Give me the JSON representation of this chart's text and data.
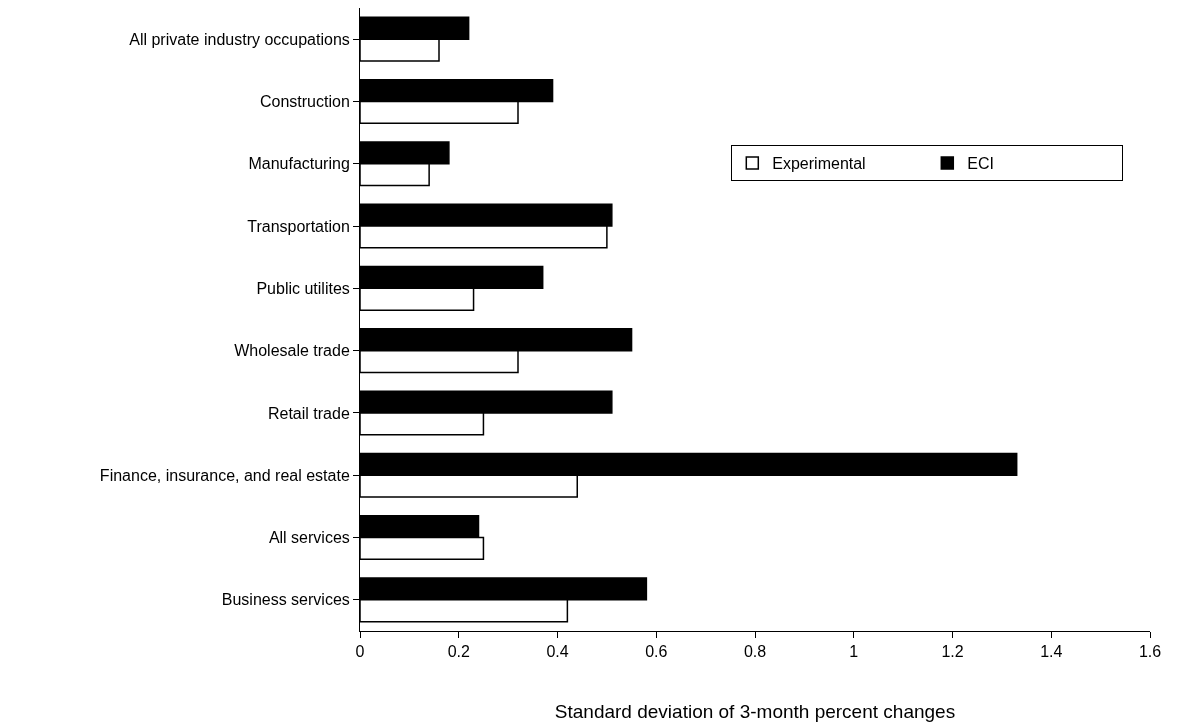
{
  "chart_data": {
    "type": "bar",
    "orientation": "horizontal",
    "xlabel": "Standard deviation of 3-month percent changes",
    "categories": [
      "All private industry occupations",
      "Construction",
      "Manufacturing",
      "Transportation",
      "Public utilites",
      "Wholesale trade",
      "Retail trade",
      "Finance, insurance, and real estate",
      "All services",
      "Business services"
    ],
    "series": [
      {
        "name": "Experimental",
        "color": "#ffffff",
        "values": [
          0.16,
          0.32,
          0.14,
          0.5,
          0.23,
          0.32,
          0.25,
          0.44,
          0.25,
          0.42
        ]
      },
      {
        "name": "ECI",
        "color": "#000000",
        "values": [
          0.22,
          0.39,
          0.18,
          0.51,
          0.37,
          0.55,
          0.51,
          1.33,
          0.24,
          0.58
        ]
      }
    ],
    "xlim": [
      0,
      1.6
    ],
    "xticks": [
      0,
      0.2,
      0.4,
      0.6,
      0.8,
      1,
      1.2,
      1.4,
      1.6
    ],
    "legend": "right"
  }
}
